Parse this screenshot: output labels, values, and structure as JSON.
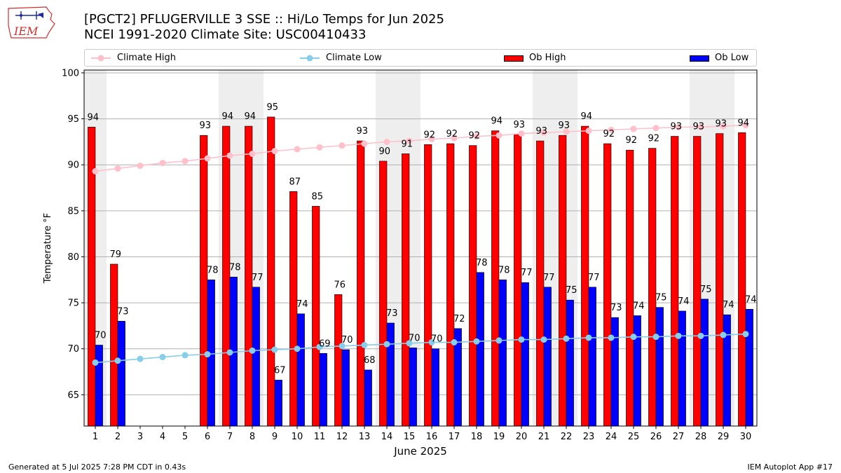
{
  "header": {
    "title": "[PGCT2] PFLUGERVILLE 3 SSE :: Hi/Lo Temps for Jun 2025",
    "subtitle": "NCEI 1991-2020 Climate Site: USC00410433",
    "logo_text": "IEM"
  },
  "footer": {
    "generated": "Generated at 5 Jul 2025 7:28 PM CDT in 0.43s",
    "app": "IEM Autoplot App #17"
  },
  "legend": {
    "climate_high": "Climate High",
    "climate_low": "Climate Low",
    "ob_high": "Ob High",
    "ob_low": "Ob Low"
  },
  "colors": {
    "ob_high": "#ff0000",
    "ob_low": "#0000ff",
    "climate_high": "#ffc0cb",
    "climate_low": "#87ceeb",
    "weekend_band": "#eeeeee",
    "grid": "#b0b0b0"
  },
  "chart_data": {
    "type": "bar",
    "title": "[PGCT2] PFLUGERVILLE 3 SSE :: Hi/Lo Temps for Jun 2025",
    "xlabel": "June 2025",
    "ylabel": "Temperature °F",
    "ylim": [
      61.6,
      100.3
    ],
    "yticks": [
      65,
      70,
      75,
      80,
      85,
      90,
      95,
      100
    ],
    "grid": true,
    "categories": [
      "1",
      "2",
      "3",
      "4",
      "5",
      "6",
      "7",
      "8",
      "9",
      "10",
      "11",
      "12",
      "13",
      "14",
      "15",
      "16",
      "17",
      "18",
      "19",
      "20",
      "21",
      "22",
      "23",
      "24",
      "25",
      "26",
      "27",
      "28",
      "29",
      "30"
    ],
    "weekend_days": [
      1,
      7,
      8,
      14,
      15,
      21,
      22,
      28,
      29
    ],
    "series": [
      {
        "name": "Ob High",
        "type": "bar",
        "values": [
          94.1,
          79.2,
          null,
          null,
          null,
          93.2,
          94.2,
          94.2,
          95.2,
          87.1,
          85.5,
          75.9,
          92.6,
          90.4,
          91.2,
          92.2,
          92.3,
          92.1,
          93.7,
          93.3,
          92.6,
          93.2,
          94.2,
          92.3,
          91.6,
          91.8,
          93.1,
          93.1,
          93.4,
          93.5
        ],
        "labels": [
          "94",
          "79",
          "",
          "",
          "",
          "93",
          "94",
          "94",
          "95",
          "87",
          "85",
          "76",
          "93",
          "90",
          "91",
          "92",
          "92",
          "92",
          "94",
          "93",
          "93",
          "93",
          "94",
          "92",
          "92",
          "92",
          "93",
          "93",
          "93",
          "94"
        ]
      },
      {
        "name": "Ob Low",
        "type": "bar",
        "values": [
          70.4,
          73.0,
          null,
          null,
          null,
          77.5,
          77.8,
          76.7,
          66.6,
          73.8,
          69.5,
          69.9,
          67.7,
          72.8,
          70.1,
          70.0,
          72.2,
          78.3,
          77.5,
          77.2,
          76.7,
          75.3,
          76.7,
          73.4,
          73.6,
          74.5,
          74.1,
          75.4,
          73.7,
          74.3
        ],
        "labels": [
          "70",
          "73",
          "",
          "",
          "",
          "78",
          "78",
          "77",
          "67",
          "74",
          "69",
          "70",
          "68",
          "73",
          "70",
          "70",
          "72",
          "78",
          "78",
          "77",
          "77",
          "75",
          "77",
          "73",
          "74",
          "75",
          "74",
          "75",
          "74",
          "74"
        ]
      },
      {
        "name": "Climate High",
        "type": "line",
        "values": [
          89.3,
          89.6,
          89.9,
          90.2,
          90.4,
          90.7,
          91.0,
          91.2,
          91.5,
          91.7,
          91.9,
          92.1,
          92.3,
          92.5,
          92.6,
          92.8,
          92.9,
          93.1,
          93.2,
          93.4,
          93.5,
          93.6,
          93.7,
          93.8,
          93.9,
          94.0,
          94.1,
          94.1,
          94.2,
          94.3
        ]
      },
      {
        "name": "Climate Low",
        "type": "line",
        "values": [
          68.5,
          68.7,
          68.9,
          69.1,
          69.3,
          69.4,
          69.6,
          69.8,
          69.9,
          70.0,
          70.2,
          70.3,
          70.4,
          70.5,
          70.6,
          70.7,
          70.7,
          70.8,
          70.9,
          71.0,
          71.0,
          71.1,
          71.2,
          71.2,
          71.3,
          71.3,
          71.4,
          71.4,
          71.5,
          71.6
        ]
      }
    ]
  }
}
